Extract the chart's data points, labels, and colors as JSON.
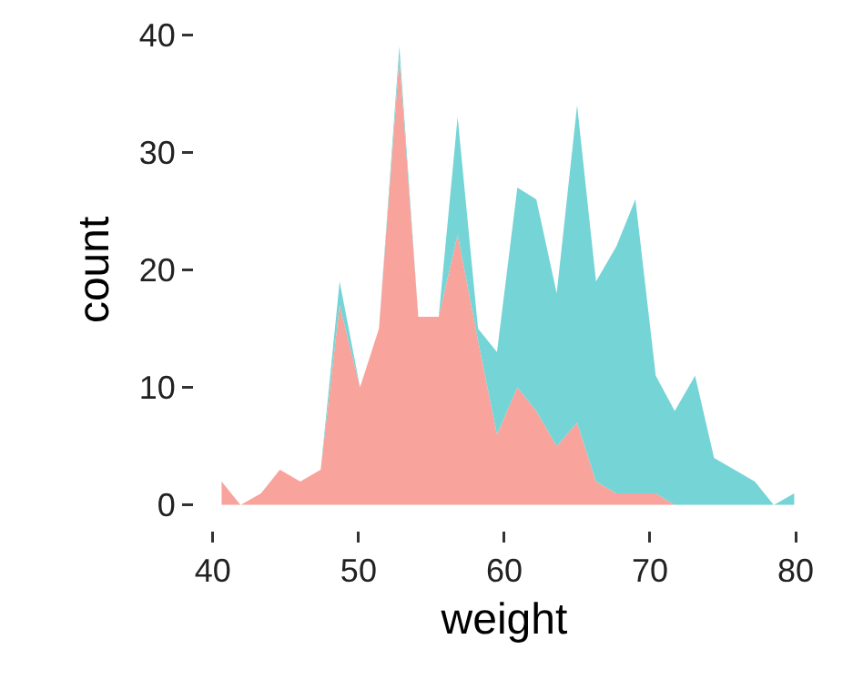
{
  "chart_data": {
    "type": "area",
    "stacked": true,
    "xlabel": "weight",
    "ylabel": "count",
    "x": [
      40.6,
      41.9,
      43.3,
      44.6,
      46.0,
      47.4,
      48.7,
      50.1,
      51.4,
      52.8,
      54.1,
      55.5,
      56.8,
      58.2,
      59.5,
      60.9,
      62.2,
      63.6,
      65.0,
      66.3,
      67.7,
      69.0,
      70.4,
      71.7,
      73.1,
      74.4,
      75.8,
      77.2,
      78.5,
      79.9
    ],
    "series": [
      {
        "color": "#f8a39c",
        "values": [
          2,
          0,
          1,
          3,
          2,
          3,
          17,
          10,
          15,
          38,
          16,
          16,
          23,
          14,
          6,
          10,
          8,
          5,
          7,
          2,
          1,
          1,
          1,
          0,
          0,
          0,
          0,
          0,
          0,
          0
        ]
      },
      {
        "color": "#75d4d6",
        "values": [
          0,
          0,
          0,
          0,
          0,
          0,
          2,
          0,
          0,
          1,
          0,
          0,
          10,
          1,
          7,
          17,
          18,
          13,
          27,
          17,
          21,
          25,
          10,
          8,
          11,
          4,
          3,
          2,
          0,
          1
        ]
      }
    ],
    "xlim": [
      40,
      80
    ],
    "ylim": [
      0,
      40
    ],
    "xticks": [
      40,
      50,
      60,
      70,
      80
    ],
    "yticks": [
      0,
      10,
      20,
      30,
      40
    ]
  }
}
